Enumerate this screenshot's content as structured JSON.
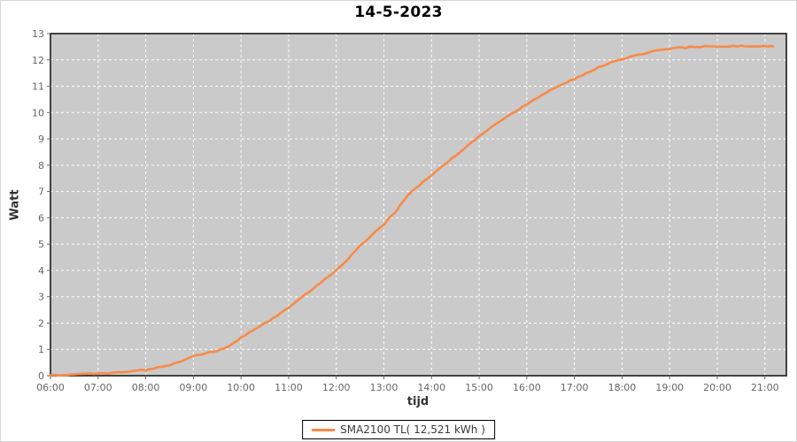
{
  "title": "14-5-2023",
  "colors": {
    "series": "#f98a47",
    "plot_bg": "#cacaca",
    "grid": "#ffffff",
    "tick": "#666666",
    "tick_label": "#666666",
    "axis_label": "#333333",
    "plot_border": "#1a1a1a",
    "legend_border": "#000000",
    "legend_text": "#3a3a3a"
  },
  "legend": {
    "entries": [
      {
        "label": "SMA2100 TL( 12,521 kWh )",
        "color": "#f98a47"
      }
    ]
  },
  "chart_data": {
    "type": "line",
    "title": "14-5-2023",
    "xlabel": "tijd",
    "ylabel": "Watt",
    "xlim": [
      6,
      21.45
    ],
    "ylim": [
      0,
      13
    ],
    "grid": true,
    "legend_position": "bottom",
    "x_ticks": [
      {
        "value": 6,
        "label": "06:00"
      },
      {
        "value": 7,
        "label": "07:00"
      },
      {
        "value": 8,
        "label": "08:00"
      },
      {
        "value": 9,
        "label": "09:00"
      },
      {
        "value": 10,
        "label": "10:00"
      },
      {
        "value": 11,
        "label": "11:00"
      },
      {
        "value": 12,
        "label": "12:00"
      },
      {
        "value": 13,
        "label": "13:00"
      },
      {
        "value": 14,
        "label": "14:00"
      },
      {
        "value": 15,
        "label": "15:00"
      },
      {
        "value": 16,
        "label": "16:00"
      },
      {
        "value": 17,
        "label": "17:00"
      },
      {
        "value": 18,
        "label": "18:00"
      },
      {
        "value": 19,
        "label": "19:00"
      },
      {
        "value": 20,
        "label": "20:00"
      },
      {
        "value": 21,
        "label": "21:00"
      }
    ],
    "y_ticks": [
      0,
      1,
      2,
      3,
      4,
      5,
      6,
      7,
      8,
      9,
      10,
      11,
      12,
      13
    ],
    "series": [
      {
        "name": "SMA2100 TL( 12,521 kWh )",
        "color": "#f98a47",
        "x": [
          6.0,
          6.25,
          6.5,
          6.75,
          7.0,
          7.25,
          7.5,
          7.75,
          8.0,
          8.25,
          8.5,
          8.75,
          9.0,
          9.25,
          9.5,
          9.75,
          10.0,
          10.25,
          10.5,
          10.75,
          11.0,
          11.25,
          11.5,
          11.75,
          12.0,
          12.25,
          12.5,
          12.75,
          13.0,
          13.25,
          13.5,
          13.75,
          14.0,
          14.25,
          14.5,
          14.75,
          15.0,
          15.25,
          15.5,
          15.75,
          16.0,
          16.25,
          16.5,
          16.75,
          17.0,
          17.25,
          17.5,
          17.75,
          18.0,
          18.25,
          18.5,
          18.75,
          19.0,
          19.25,
          19.5,
          19.75,
          20.0,
          20.25,
          20.5,
          20.75,
          21.0,
          21.17
        ],
        "y": [
          0.02,
          0.03,
          0.05,
          0.06,
          0.08,
          0.11,
          0.14,
          0.18,
          0.22,
          0.3,
          0.4,
          0.55,
          0.72,
          0.85,
          0.95,
          1.12,
          1.45,
          1.72,
          1.98,
          2.28,
          2.6,
          2.95,
          3.3,
          3.63,
          4.0,
          4.45,
          4.95,
          5.35,
          5.75,
          6.25,
          6.85,
          7.25,
          7.6,
          8.0,
          8.35,
          8.73,
          9.1,
          9.43,
          9.75,
          10.03,
          10.3,
          10.58,
          10.85,
          11.07,
          11.28,
          11.5,
          11.7,
          11.88,
          12.03,
          12.16,
          12.27,
          12.35,
          12.42,
          12.46,
          12.49,
          12.51,
          12.52,
          12.52,
          12.52,
          12.52,
          12.52,
          12.52
        ]
      }
    ]
  }
}
